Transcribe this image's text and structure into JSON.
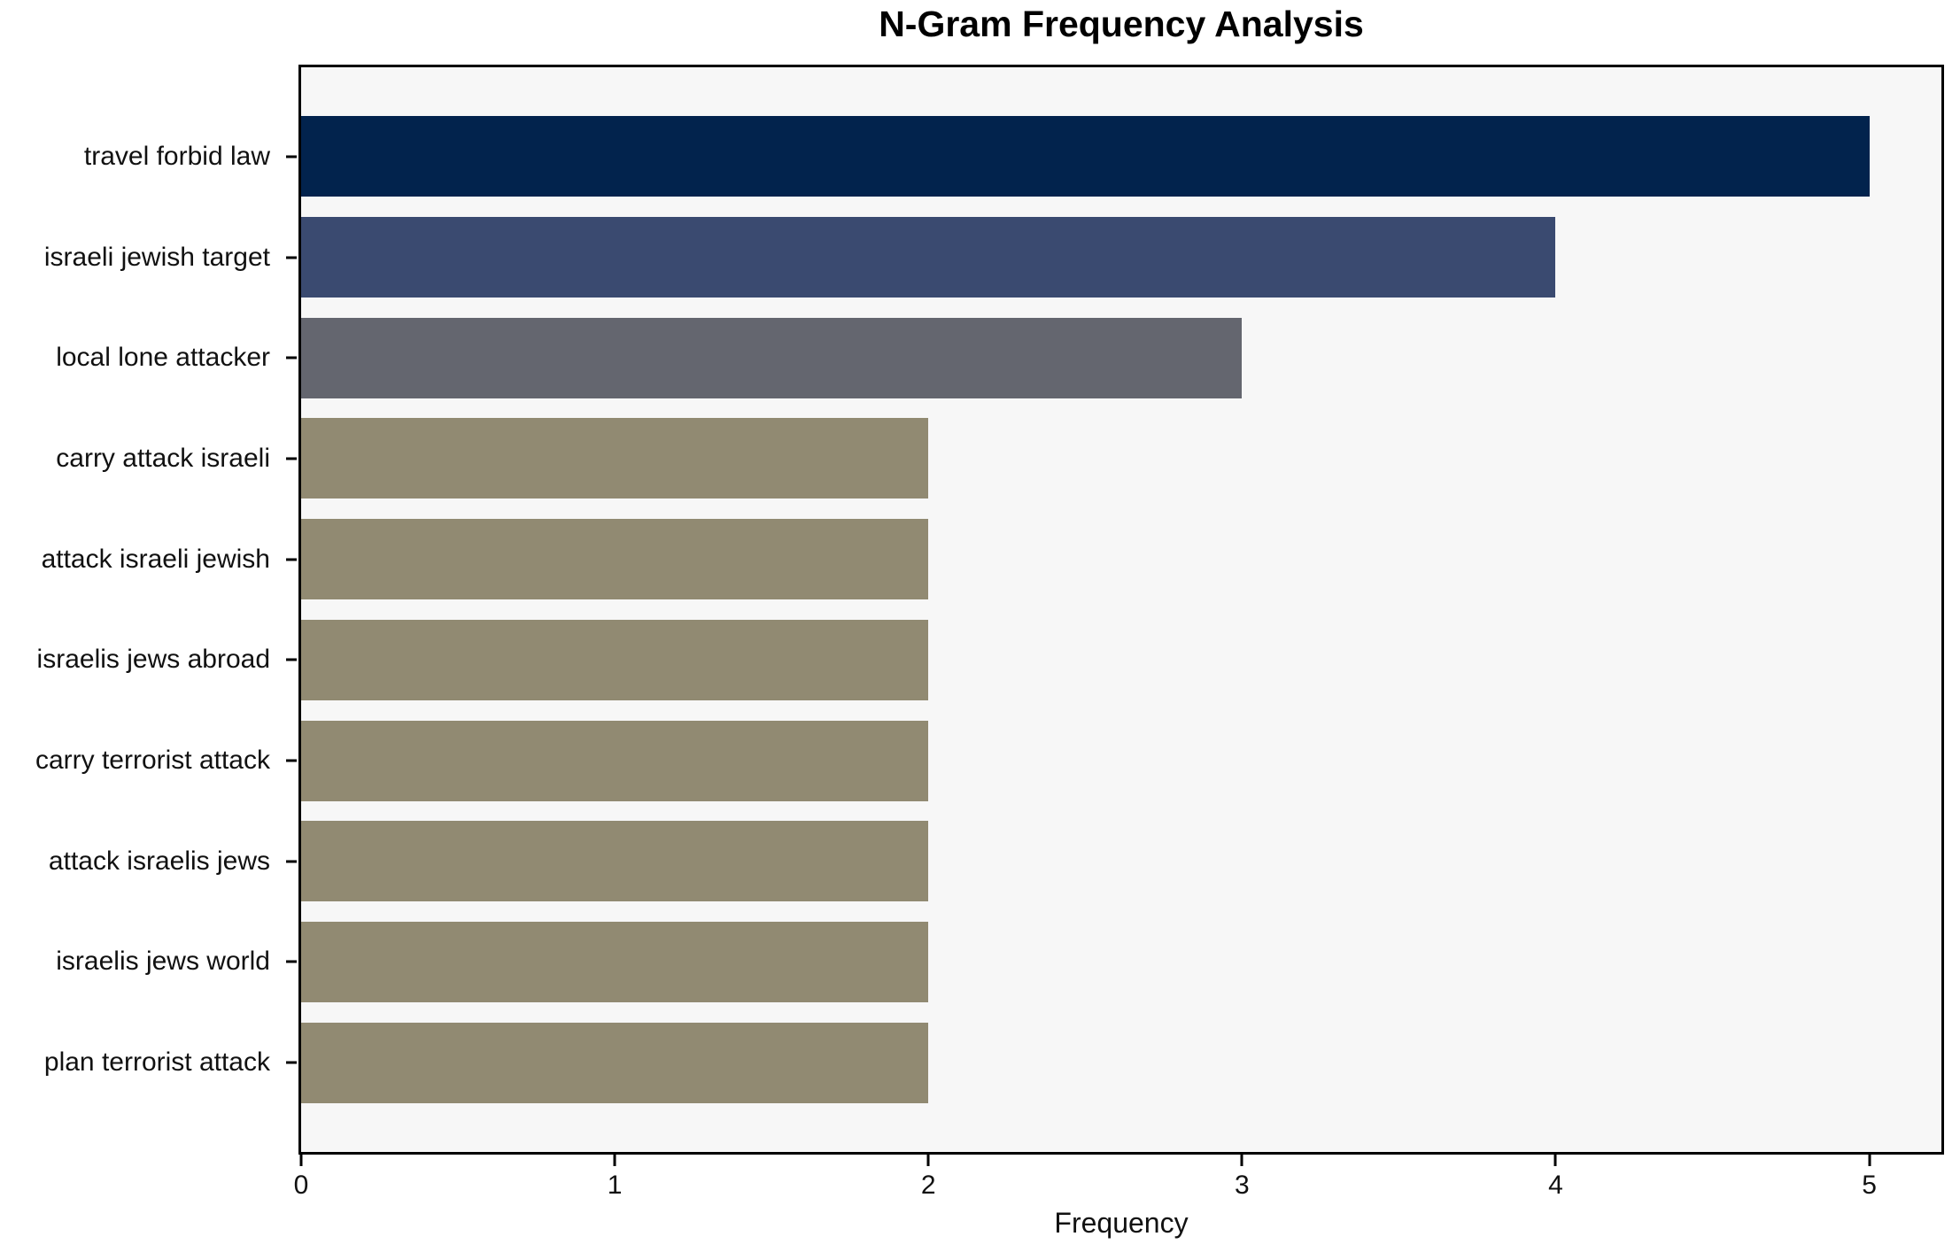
{
  "chart_data": {
    "type": "bar",
    "orientation": "horizontal",
    "title": "N-Gram Frequency Analysis",
    "xlabel": "Frequency",
    "ylabel": "",
    "categories": [
      "travel forbid law",
      "israeli jewish target",
      "local lone attacker",
      "carry attack israeli",
      "attack israeli jewish",
      "israelis jews abroad",
      "carry terrorist attack",
      "attack israelis jews",
      "israelis jews world",
      "plan terrorist attack"
    ],
    "values": [
      5,
      4,
      3,
      2,
      2,
      2,
      2,
      2,
      2,
      2
    ],
    "bar_colors": [
      "#02234D",
      "#3A4A70",
      "#64666F",
      "#918A72",
      "#918A72",
      "#918A72",
      "#918A72",
      "#918A72",
      "#918A72",
      "#918A72"
    ],
    "x_ticks": [
      0,
      1,
      2,
      3,
      4,
      5
    ],
    "xlim": [
      0,
      5.23
    ],
    "grid": false,
    "legend_position": "none",
    "plot_background": "#F7F7F7",
    "spine_color": "#000000",
    "text_color": "#111111"
  }
}
